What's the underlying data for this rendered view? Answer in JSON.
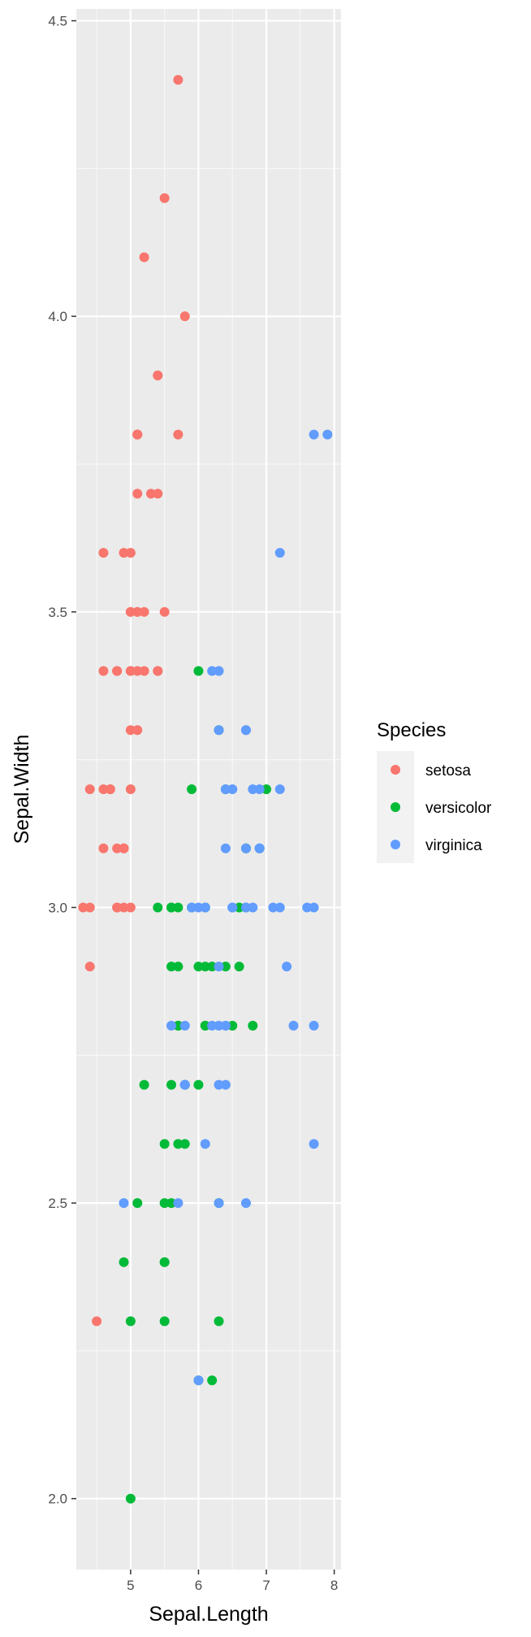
{
  "chart_data": {
    "type": "scatter",
    "title": "",
    "xlabel": "Sepal.Length",
    "ylabel": "Sepal.Width",
    "xlim": [
      4.2,
      8.1
    ],
    "ylim": [
      1.88,
      4.52
    ],
    "x_ticks": [
      5,
      6,
      7,
      8
    ],
    "y_ticks": [
      2.0,
      2.5,
      3.0,
      3.5,
      4.0,
      4.5
    ],
    "y_tick_labels": [
      "2.0",
      "2.5",
      "3.0",
      "3.5",
      "4.0",
      "4.5"
    ],
    "grid": true,
    "legend": {
      "title": "Species",
      "position": "right"
    },
    "series": [
      {
        "name": "setosa",
        "color": "#F8766D",
        "points": [
          [
            5.1,
            3.5
          ],
          [
            4.9,
            3.0
          ],
          [
            4.7,
            3.2
          ],
          [
            4.6,
            3.1
          ],
          [
            5.0,
            3.6
          ],
          [
            5.4,
            3.9
          ],
          [
            4.6,
            3.4
          ],
          [
            5.0,
            3.4
          ],
          [
            4.4,
            2.9
          ],
          [
            4.9,
            3.1
          ],
          [
            5.4,
            3.7
          ],
          [
            4.8,
            3.4
          ],
          [
            4.8,
            3.0
          ],
          [
            4.3,
            3.0
          ],
          [
            5.8,
            4.0
          ],
          [
            5.7,
            4.4
          ],
          [
            5.4,
            3.9
          ],
          [
            5.1,
            3.5
          ],
          [
            5.7,
            3.8
          ],
          [
            5.1,
            3.8
          ],
          [
            5.4,
            3.4
          ],
          [
            5.1,
            3.7
          ],
          [
            4.6,
            3.6
          ],
          [
            5.1,
            3.3
          ],
          [
            4.8,
            3.4
          ],
          [
            5.0,
            3.0
          ],
          [
            5.0,
            3.4
          ],
          [
            5.2,
            3.5
          ],
          [
            5.2,
            3.4
          ],
          [
            4.7,
            3.2
          ],
          [
            4.8,
            3.1
          ],
          [
            5.4,
            3.4
          ],
          [
            5.2,
            4.1
          ],
          [
            5.5,
            4.2
          ],
          [
            4.9,
            3.1
          ],
          [
            5.0,
            3.2
          ],
          [
            5.5,
            3.5
          ],
          [
            4.9,
            3.6
          ],
          [
            4.4,
            3.0
          ],
          [
            5.1,
            3.4
          ],
          [
            5.0,
            3.5
          ],
          [
            4.5,
            2.3
          ],
          [
            4.4,
            3.2
          ],
          [
            5.0,
            3.5
          ],
          [
            5.1,
            3.8
          ],
          [
            4.8,
            3.0
          ],
          [
            5.1,
            3.8
          ],
          [
            4.6,
            3.2
          ],
          [
            5.3,
            3.7
          ],
          [
            5.0,
            3.3
          ]
        ]
      },
      {
        "name": "versicolor",
        "color": "#00BA38",
        "points": [
          [
            7.0,
            3.2
          ],
          [
            6.4,
            3.2
          ],
          [
            6.9,
            3.1
          ],
          [
            5.5,
            2.3
          ],
          [
            6.5,
            2.8
          ],
          [
            5.7,
            2.8
          ],
          [
            6.3,
            3.3
          ],
          [
            4.9,
            2.4
          ],
          [
            6.6,
            2.9
          ],
          [
            5.2,
            2.7
          ],
          [
            5.0,
            2.0
          ],
          [
            5.9,
            3.0
          ],
          [
            6.0,
            2.2
          ],
          [
            6.1,
            2.9
          ],
          [
            5.6,
            2.9
          ],
          [
            6.7,
            3.1
          ],
          [
            5.6,
            3.0
          ],
          [
            5.8,
            2.7
          ],
          [
            6.2,
            2.2
          ],
          [
            5.6,
            2.5
          ],
          [
            5.9,
            3.2
          ],
          [
            6.1,
            2.8
          ],
          [
            6.3,
            2.5
          ],
          [
            6.1,
            2.8
          ],
          [
            6.4,
            2.9
          ],
          [
            6.6,
            3.0
          ],
          [
            6.8,
            2.8
          ],
          [
            6.7,
            3.0
          ],
          [
            6.0,
            2.9
          ],
          [
            5.7,
            2.6
          ],
          [
            5.5,
            2.4
          ],
          [
            5.5,
            2.4
          ],
          [
            5.8,
            2.7
          ],
          [
            6.0,
            2.7
          ],
          [
            5.4,
            3.0
          ],
          [
            6.0,
            3.4
          ],
          [
            6.7,
            3.1
          ],
          [
            6.3,
            2.3
          ],
          [
            5.6,
            3.0
          ],
          [
            5.5,
            2.5
          ],
          [
            5.5,
            2.6
          ],
          [
            6.1,
            3.0
          ],
          [
            5.8,
            2.6
          ],
          [
            5.0,
            2.3
          ],
          [
            5.6,
            2.7
          ],
          [
            5.7,
            3.0
          ],
          [
            5.7,
            2.9
          ],
          [
            6.2,
            2.9
          ],
          [
            5.1,
            2.5
          ],
          [
            5.7,
            2.8
          ]
        ]
      },
      {
        "name": "virginica",
        "color": "#619CFF",
        "points": [
          [
            6.3,
            3.3
          ],
          [
            5.8,
            2.7
          ],
          [
            7.1,
            3.0
          ],
          [
            6.3,
            2.9
          ],
          [
            6.5,
            3.0
          ],
          [
            7.6,
            3.0
          ],
          [
            4.9,
            2.5
          ],
          [
            7.3,
            2.9
          ],
          [
            6.7,
            2.5
          ],
          [
            7.2,
            3.6
          ],
          [
            6.5,
            3.2
          ],
          [
            6.4,
            2.7
          ],
          [
            6.8,
            3.0
          ],
          [
            5.7,
            2.5
          ],
          [
            5.8,
            2.8
          ],
          [
            6.4,
            3.2
          ],
          [
            6.5,
            3.0
          ],
          [
            7.7,
            3.8
          ],
          [
            7.7,
            2.6
          ],
          [
            6.0,
            2.2
          ],
          [
            6.9,
            3.2
          ],
          [
            5.6,
            2.8
          ],
          [
            7.7,
            2.8
          ],
          [
            6.3,
            2.7
          ],
          [
            6.7,
            3.3
          ],
          [
            7.2,
            3.2
          ],
          [
            6.2,
            2.8
          ],
          [
            6.1,
            3.0
          ],
          [
            6.4,
            2.8
          ],
          [
            7.2,
            3.0
          ],
          [
            7.4,
            2.8
          ],
          [
            7.9,
            3.8
          ],
          [
            6.4,
            2.8
          ],
          [
            6.3,
            2.8
          ],
          [
            6.1,
            2.6
          ],
          [
            7.7,
            3.0
          ],
          [
            6.3,
            3.4
          ],
          [
            6.4,
            3.1
          ],
          [
            6.0,
            3.0
          ],
          [
            6.9,
            3.1
          ],
          [
            6.7,
            3.1
          ],
          [
            6.9,
            3.1
          ],
          [
            5.8,
            2.7
          ],
          [
            6.8,
            3.2
          ],
          [
            6.7,
            3.3
          ],
          [
            6.7,
            3.0
          ],
          [
            6.3,
            2.5
          ],
          [
            6.5,
            3.0
          ],
          [
            6.2,
            3.4
          ],
          [
            5.9,
            3.0
          ]
        ]
      }
    ]
  }
}
